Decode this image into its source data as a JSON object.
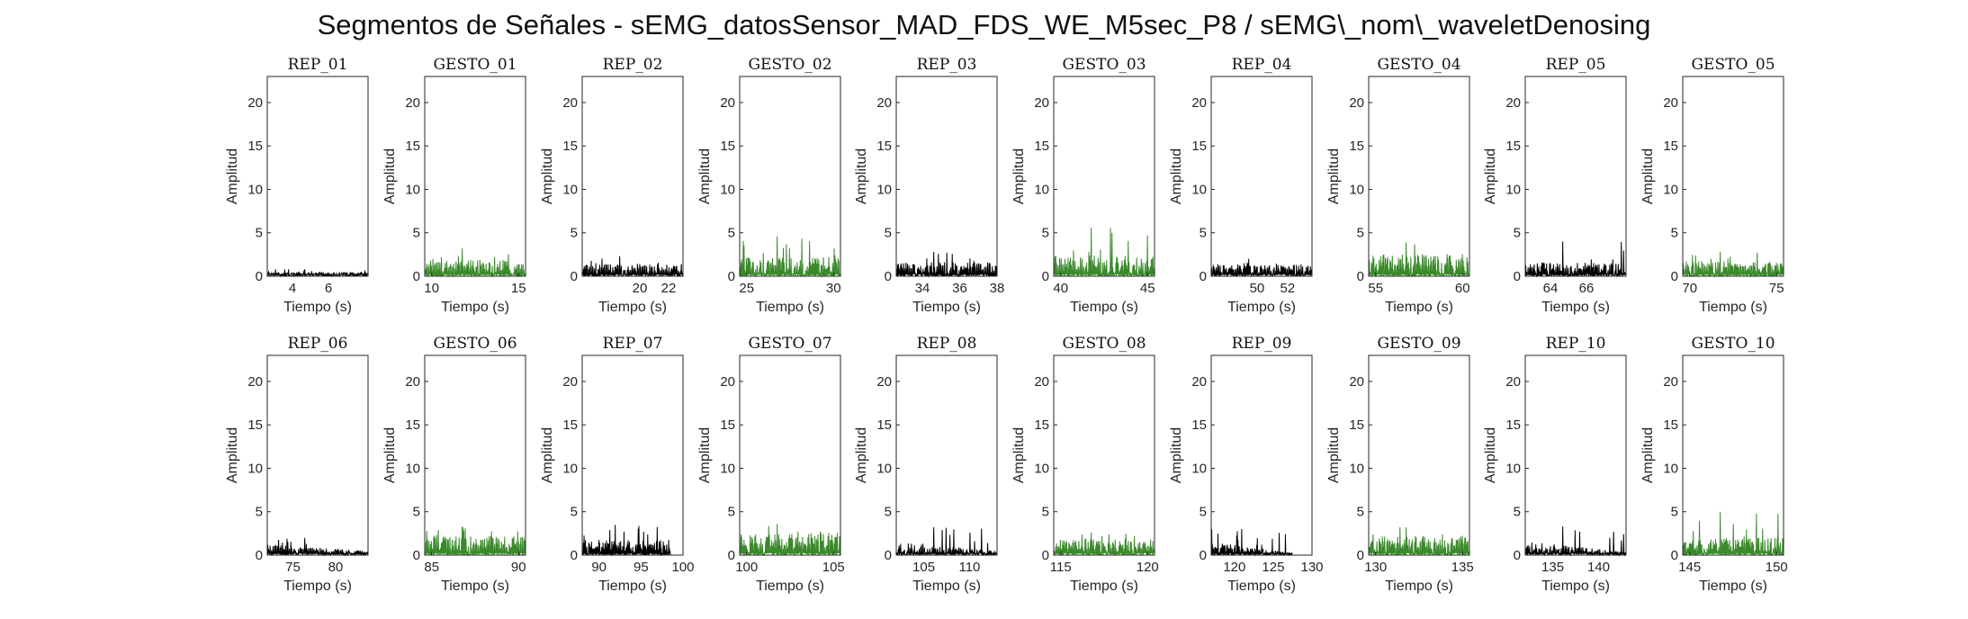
{
  "figure": {
    "title": "Segmentos de Señales - sEMG_datosSensor_MAD_FDS_WE_M5sec_P8 / sEMG\\_nom\\_waveletDenosing"
  },
  "chart_data": {
    "type": "line",
    "ylabel": "Amplitud",
    "xlabel": "Tiempo (s)",
    "ylim": [
      0,
      23
    ],
    "yticks": [
      0,
      5,
      10,
      15,
      20
    ],
    "grid": false,
    "colors": {
      "REP": "#000000",
      "GESTO": "#3a8a2a"
    },
    "panels": [
      {
        "title": "REP_01",
        "kind": "REP",
        "xlim": [
          2.6,
          8.2
        ],
        "xticks": [
          4,
          6
        ],
        "base": 0.3,
        "peak": 0.8
      },
      {
        "title": "GESTO_01",
        "kind": "GESTO",
        "xlim": [
          9.6,
          15.4
        ],
        "xticks": [
          10,
          15
        ],
        "base": 1.2,
        "peak": 3.2
      },
      {
        "title": "REP_02",
        "kind": "REP",
        "xlim": [
          16.0,
          23.0
        ],
        "xticks": [
          20,
          22
        ],
        "base": 0.9,
        "peak": 2.3
      },
      {
        "title": "GESTO_02",
        "kind": "GESTO",
        "xlim": [
          24.6,
          30.4
        ],
        "xticks": [
          25,
          30
        ],
        "base": 1.4,
        "peak": 4.6
      },
      {
        "title": "REP_03",
        "kind": "REP",
        "xlim": [
          32.6,
          38.0
        ],
        "xticks": [
          34,
          36,
          38
        ],
        "base": 1.0,
        "peak": 2.8
      },
      {
        "title": "GESTO_03",
        "kind": "GESTO",
        "xlim": [
          39.6,
          45.4
        ],
        "xticks": [
          40,
          45
        ],
        "base": 1.5,
        "peak": 5.6
      },
      {
        "title": "REP_04",
        "kind": "REP",
        "xlim": [
          47.0,
          53.6
        ],
        "xticks": [
          50,
          52
        ],
        "base": 0.9,
        "peak": 2.0
      },
      {
        "title": "GESTO_04",
        "kind": "GESTO",
        "xlim": [
          54.6,
          60.4
        ],
        "xticks": [
          55,
          60
        ],
        "base": 1.6,
        "peak": 3.9
      },
      {
        "title": "REP_05",
        "kind": "REP",
        "xlim": [
          62.6,
          68.2
        ],
        "xticks": [
          64,
          66
        ],
        "base": 1.0,
        "peak": 4.0
      },
      {
        "title": "GESTO_05",
        "kind": "GESTO",
        "xlim": [
          69.6,
          75.4
        ],
        "xticks": [
          70,
          75
        ],
        "base": 1.1,
        "peak": 2.8
      },
      {
        "title": "REP_06",
        "kind": "REP",
        "xlim": [
          72.0,
          83.8
        ],
        "xticks": [
          75,
          80
        ],
        "base": 0.8,
        "peak": 2.0,
        "decay": 0.6
      },
      {
        "title": "GESTO_06",
        "kind": "GESTO",
        "xlim": [
          84.6,
          90.4
        ],
        "xticks": [
          85,
          90
        ],
        "base": 1.4,
        "peak": 3.3
      },
      {
        "title": "REP_07",
        "kind": "REP",
        "xlim": [
          88.0,
          100.0
        ],
        "xticks": [
          90,
          95,
          100
        ],
        "base": 1.1,
        "peak": 3.5,
        "dataEnd": 98.5
      },
      {
        "title": "GESTO_07",
        "kind": "GESTO",
        "xlim": [
          99.6,
          105.4
        ],
        "xticks": [
          100,
          105
        ],
        "base": 1.6,
        "peak": 3.6
      },
      {
        "title": "REP_08",
        "kind": "REP",
        "xlim": [
          102.0,
          113.0
        ],
        "xticks": [
          105,
          110
        ],
        "base": 1.0,
        "peak": 3.2,
        "decay": 0.7
      },
      {
        "title": "GESTO_08",
        "kind": "GESTO",
        "xlim": [
          114.6,
          120.4
        ],
        "xticks": [
          115,
          120
        ],
        "base": 1.2,
        "peak": 2.6
      },
      {
        "title": "REP_09",
        "kind": "REP",
        "xlim": [
          117.0,
          130.0
        ],
        "xticks": [
          120,
          125,
          130
        ],
        "base": 1.0,
        "peak": 3.0,
        "decay": 0.85,
        "dataEnd": 127.5
      },
      {
        "title": "GESTO_09",
        "kind": "GESTO",
        "xlim": [
          129.6,
          135.4
        ],
        "xticks": [
          130,
          135
        ],
        "base": 1.4,
        "peak": 3.2
      },
      {
        "title": "REP_10",
        "kind": "REP",
        "xlim": [
          132.0,
          143.0
        ],
        "xticks": [
          135,
          140
        ],
        "base": 1.0,
        "peak": 3.3,
        "decay": 0.75
      },
      {
        "title": "GESTO_10",
        "kind": "GESTO",
        "xlim": [
          144.6,
          150.4
        ],
        "xticks": [
          145,
          150
        ],
        "base": 1.3,
        "peak": 5.0
      }
    ]
  }
}
